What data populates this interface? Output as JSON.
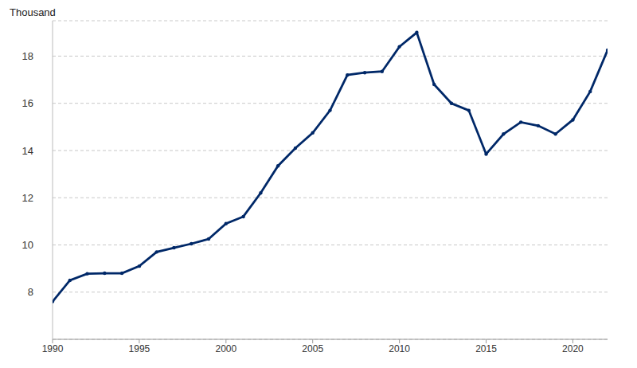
{
  "chart_data": {
    "type": "line",
    "y_label": "Thousand",
    "x": [
      1990,
      1991,
      1992,
      1993,
      1994,
      1995,
      1996,
      1997,
      1998,
      1999,
      2000,
      2001,
      2002,
      2003,
      2004,
      2005,
      2006,
      2007,
      2008,
      2009,
      2010,
      2011,
      2012,
      2013,
      2014,
      2015,
      2016,
      2017,
      2018,
      2019,
      2020,
      2021,
      2022
    ],
    "values": [
      7.6,
      8.5,
      8.78,
      8.8,
      8.8,
      9.1,
      9.7,
      9.88,
      10.05,
      10.25,
      10.9,
      11.2,
      12.2,
      13.35,
      14.1,
      14.75,
      15.7,
      17.2,
      17.3,
      17.35,
      18.4,
      19.0,
      16.8,
      16.0,
      15.7,
      13.85,
      14.7,
      15.2,
      15.05,
      14.7,
      15.3,
      16.5,
      18.25
    ],
    "color": "#002868",
    "marker": "circle",
    "xlim": [
      1990,
      2022
    ],
    "xticks": [
      1990,
      1995,
      2000,
      2005,
      2010,
      2015,
      2020
    ],
    "ylim": [
      6,
      19.5
    ],
    "yticks": [
      8,
      10,
      12,
      14,
      16,
      18
    ],
    "grid": true
  }
}
